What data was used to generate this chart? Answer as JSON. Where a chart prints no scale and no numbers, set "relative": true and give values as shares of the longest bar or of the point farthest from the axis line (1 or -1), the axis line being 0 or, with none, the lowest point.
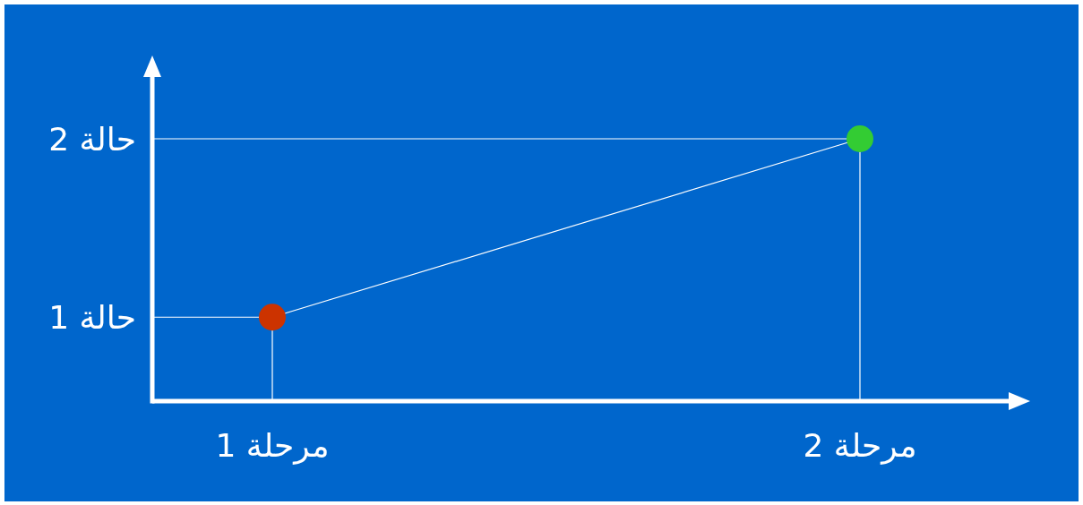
{
  "chart_data": {
    "type": "line",
    "relative": true,
    "categories": [
      "مرحلة 1",
      "مرحلة 2"
    ],
    "series": [
      {
        "color": "#ffffff",
        "colors": [
          "#cc3300",
          "#33cc33"
        ],
        "values": [
          0.32,
          1
        ]
      }
    ],
    "annotations": [
      "حالة 1",
      "حالة 2"
    ],
    "marker": "circle"
  }
}
